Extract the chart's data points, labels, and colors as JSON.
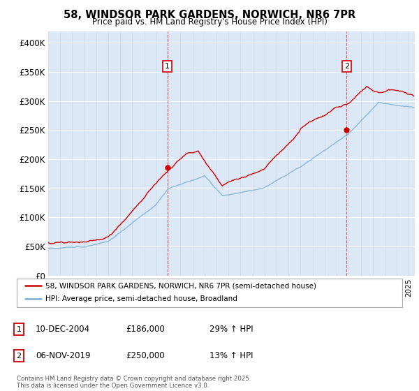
{
  "title1": "58, WINDSOR PARK GARDENS, NORWICH, NR6 7PR",
  "title2": "Price paid vs. HM Land Registry's House Price Index (HPI)",
  "ylim": [
    0,
    420000
  ],
  "xlim_start": 1995,
  "xlim_end": 2025.5,
  "yticks": [
    0,
    50000,
    100000,
    150000,
    200000,
    250000,
    300000,
    350000,
    400000
  ],
  "ytick_labels": [
    "£0",
    "£50K",
    "£100K",
    "£150K",
    "£200K",
    "£250K",
    "£300K",
    "£350K",
    "£400K"
  ],
  "plot_bg_color": "#dce8f5",
  "red_line_color": "#cc0000",
  "blue_line_color": "#7bafd4",
  "vline_color": "#cc0000",
  "marker1_x": 2004.92,
  "marker1_y": 186000,
  "marker1_label": "1",
  "marker2_x": 2019.83,
  "marker2_y": 250000,
  "marker2_label": "2",
  "legend_label1": "58, WINDSOR PARK GARDENS, NORWICH, NR6 7PR (semi-detached house)",
  "legend_label2": "HPI: Average price, semi-detached house, Broadland",
  "annotation1_date": "10-DEC-2004",
  "annotation1_price": "£186,000",
  "annotation1_hpi": "29% ↑ HPI",
  "annotation2_date": "06-NOV-2019",
  "annotation2_price": "£250,000",
  "annotation2_hpi": "13% ↑ HPI",
  "footer": "Contains HM Land Registry data © Crown copyright and database right 2025.\nThis data is licensed under the Open Government Licence v3.0."
}
